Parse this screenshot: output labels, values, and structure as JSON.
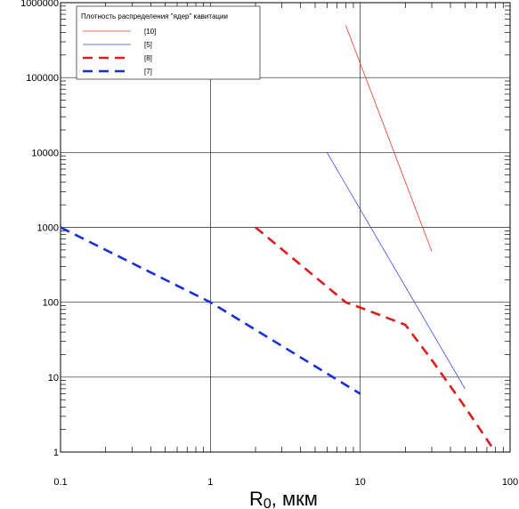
{
  "chart_data": {
    "type": "line",
    "x_scale": "log",
    "y_scale": "log",
    "xlim": [
      0.1,
      100
    ],
    "ylim": [
      1,
      1000000
    ],
    "grid": true,
    "x_ticks": [
      {
        "value": 0.1,
        "label": "0.1"
      },
      {
        "value": 1,
        "label": "1"
      },
      {
        "value": 10,
        "label": "10"
      },
      {
        "value": 100,
        "label": "100"
      }
    ],
    "y_ticks": [
      {
        "value": 1,
        "label": "1"
      },
      {
        "value": 10,
        "label": "10"
      },
      {
        "value": 100,
        "label": "100"
      },
      {
        "value": 1000,
        "label": "1000"
      },
      {
        "value": 10000,
        "label": "10000"
      },
      {
        "value": 100000,
        "label": "100000"
      },
      {
        "value": 1000000,
        "label": "1000000"
      }
    ],
    "xlabel_main": "R",
    "xlabel_sub": "0",
    "xlabel_rest": ", мкм",
    "legend": {
      "title": "Плотность распределения \"ядер\" кавитации",
      "placement": "top-left"
    },
    "series": [
      {
        "name": "[10]",
        "color": "#e8392a",
        "style": "solid",
        "points": [
          [
            8,
            500000
          ],
          [
            30,
            480
          ]
        ]
      },
      {
        "name": "[5]",
        "color": "#3a4fd8",
        "style": "solid",
        "points": [
          [
            6,
            10000
          ],
          [
            50,
            7
          ]
        ]
      },
      {
        "name": "[8]",
        "color": "#e01b1b",
        "style": "dashed",
        "points": [
          [
            2,
            1000
          ],
          [
            8,
            100
          ],
          [
            10,
            85
          ],
          [
            20,
            50
          ],
          [
            30,
            17
          ],
          [
            50,
            4
          ],
          [
            75,
            1.2
          ]
        ]
      },
      {
        "name": "[7]",
        "color": "#1a2fd6",
        "style": "dashed",
        "points": [
          [
            0.1,
            1000
          ],
          [
            1,
            100
          ],
          [
            10,
            6
          ]
        ]
      }
    ]
  }
}
